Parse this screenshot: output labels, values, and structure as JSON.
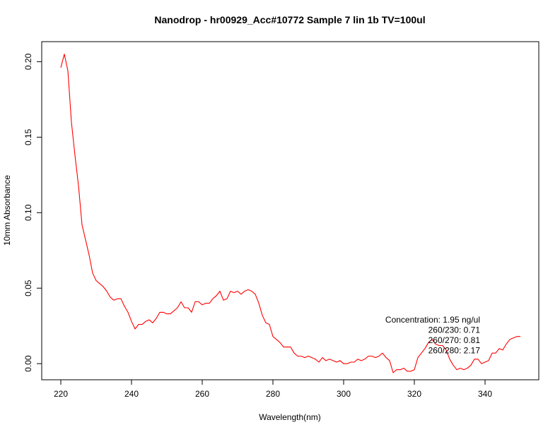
{
  "chart_data": {
    "type": "line",
    "title": "Nanodrop - hr00929_Acc#10772 Sample 7 lin 1b TV=100ul",
    "xlabel": "Wavelength(nm)",
    "ylabel": "10mm Absorbance",
    "xlim": [
      220,
      350
    ],
    "ylim": [
      -0.006,
      0.21
    ],
    "xticks": [
      220,
      240,
      260,
      280,
      300,
      320,
      340
    ],
    "yticks": [
      0.0,
      0.05,
      0.1,
      0.15,
      0.2
    ],
    "xtick_labels": [
      "220",
      "240",
      "260",
      "280",
      "300",
      "320",
      "340"
    ],
    "ytick_labels": [
      "0.00",
      "0.05",
      "0.10",
      "0.15",
      "0.20"
    ],
    "grid": false,
    "series": [
      {
        "color": "#ff0000",
        "x": [
          220,
          221,
          222,
          223,
          224,
          225,
          226,
          227,
          228,
          229,
          230,
          231,
          232,
          233,
          234,
          235,
          236,
          237,
          238,
          239,
          240,
          241,
          242,
          243,
          244,
          245,
          246,
          247,
          248,
          249,
          250,
          251,
          252,
          253,
          254,
          255,
          256,
          257,
          258,
          259,
          260,
          261,
          262,
          263,
          264,
          265,
          266,
          267,
          268,
          269,
          270,
          271,
          272,
          273,
          274,
          275,
          276,
          277,
          278,
          279,
          280,
          281,
          282,
          283,
          284,
          285,
          286,
          287,
          288,
          289,
          290,
          291,
          292,
          293,
          294,
          295,
          296,
          297,
          298,
          299,
          300,
          301,
          302,
          303,
          304,
          305,
          306,
          307,
          308,
          309,
          310,
          311,
          312,
          313,
          314,
          315,
          316,
          317,
          318,
          319,
          320,
          321,
          322,
          323,
          324,
          325,
          326,
          327,
          328,
          329,
          330,
          331,
          332,
          333,
          334,
          335,
          336,
          337,
          338,
          339,
          340,
          341,
          342,
          343,
          344,
          345,
          346,
          347,
          348,
          349,
          350
        ],
        "y": [
          0.196,
          0.205,
          0.194,
          0.16,
          0.138,
          0.118,
          0.092,
          0.082,
          0.072,
          0.06,
          0.055,
          0.053,
          0.051,
          0.048,
          0.044,
          0.042,
          0.043,
          0.043,
          0.038,
          0.034,
          0.028,
          0.023,
          0.026,
          0.026,
          0.028,
          0.029,
          0.027,
          0.03,
          0.034,
          0.034,
          0.033,
          0.033,
          0.035,
          0.037,
          0.041,
          0.037,
          0.037,
          0.034,
          0.041,
          0.041,
          0.039,
          0.04,
          0.04,
          0.043,
          0.045,
          0.048,
          0.042,
          0.043,
          0.048,
          0.047,
          0.048,
          0.046,
          0.048,
          0.049,
          0.048,
          0.046,
          0.04,
          0.032,
          0.027,
          0.026,
          0.018,
          0.016,
          0.014,
          0.011,
          0.011,
          0.011,
          0.007,
          0.005,
          0.005,
          0.004,
          0.005,
          0.004,
          0.003,
          0.001,
          0.004,
          0.002,
          0.003,
          0.002,
          0.001,
          0.002,
          0.0,
          0.0,
          0.001,
          0.001,
          0.003,
          0.002,
          0.003,
          0.005,
          0.005,
          0.004,
          0.005,
          0.007,
          0.004,
          0.002,
          -0.006,
          -0.004,
          -0.004,
          -0.003,
          -0.005,
          -0.005,
          -0.004,
          0.004,
          0.007,
          0.01,
          0.014,
          0.016,
          0.013,
          0.012,
          0.012,
          0.009,
          0.003,
          -0.001,
          -0.004,
          -0.003,
          -0.004,
          -0.003,
          -0.001,
          0.003,
          0.003,
          0.0,
          0.001,
          0.002,
          0.007,
          0.007,
          0.01,
          0.009,
          0.013,
          0.016,
          0.017,
          0.018,
          0.018
        ]
      }
    ],
    "annotations": [
      {
        "text": "Concentration: 1.95 ng/ul",
        "anchor": "right"
      },
      {
        "text": "260/230: 0.71",
        "anchor": "right"
      },
      {
        "text": "260/270: 0.81",
        "anchor": "right"
      },
      {
        "text": "260/280: 2.17",
        "anchor": "right"
      }
    ]
  }
}
